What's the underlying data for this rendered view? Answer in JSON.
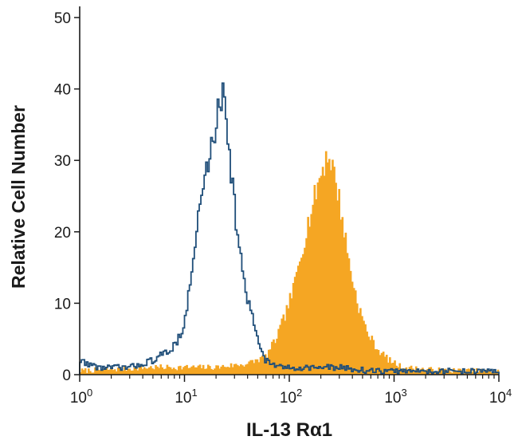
{
  "chart_data": {
    "type": "histogram",
    "xlabel": "IL-13 Rα1",
    "ylabel": "Relative Cell Number",
    "xscale": "log",
    "xlim": [
      1,
      10000
    ],
    "ylim": [
      0,
      50
    ],
    "y_ticks": [
      0,
      10,
      20,
      30,
      40,
      50
    ],
    "x_ticks": [
      {
        "value": 1,
        "base": "10",
        "exp": "0"
      },
      {
        "value": 10,
        "base": "10",
        "exp": "1"
      },
      {
        "value": 100,
        "base": "10",
        "exp": "2"
      },
      {
        "value": 1000,
        "base": "10",
        "exp": "3"
      },
      {
        "value": 10000,
        "base": "10",
        "exp": "4"
      }
    ],
    "grid": false,
    "legend": "none",
    "series": [
      {
        "style": "outline",
        "color": "#1f4e79",
        "points": [
          [
            1.0,
            2
          ],
          [
            1.5,
            1
          ],
          [
            2.0,
            1
          ],
          [
            3.0,
            1
          ],
          [
            5.0,
            2
          ],
          [
            6.5,
            3
          ],
          [
            8.0,
            4
          ],
          [
            10.0,
            7
          ],
          [
            12.0,
            15
          ],
          [
            13.5,
            22
          ],
          [
            15.0,
            26
          ],
          [
            17.0,
            30
          ],
          [
            19.0,
            33
          ],
          [
            21.0,
            37
          ],
          [
            23.0,
            40
          ],
          [
            24.0,
            41
          ],
          [
            25.0,
            37
          ],
          [
            28.0,
            28
          ],
          [
            32.0,
            20
          ],
          [
            37.0,
            13
          ],
          [
            42.0,
            9
          ],
          [
            47.0,
            7
          ],
          [
            52.0,
            4
          ],
          [
            60.0,
            2
          ],
          [
            80.0,
            1
          ],
          [
            150.0,
            1
          ],
          [
            300.0,
            1
          ],
          [
            600.0,
            0.5
          ],
          [
            1500.0,
            0.5
          ],
          [
            4000.0,
            0.5
          ],
          [
            10000.0,
            0.5
          ]
        ]
      },
      {
        "style": "filled",
        "color": "#f5a623",
        "points": [
          [
            1.0,
            0.5
          ],
          [
            5.0,
            1
          ],
          [
            20.0,
            1
          ],
          [
            40.0,
            1.5
          ],
          [
            60.0,
            2.5
          ],
          [
            75.0,
            5
          ],
          [
            90.0,
            8
          ],
          [
            110.0,
            12
          ],
          [
            130.0,
            17
          ],
          [
            150.0,
            21
          ],
          [
            170.0,
            24
          ],
          [
            190.0,
            27
          ],
          [
            210.0,
            29
          ],
          [
            230.0,
            31
          ],
          [
            250.0,
            30
          ],
          [
            280.0,
            27
          ],
          [
            320.0,
            22
          ],
          [
            380.0,
            15
          ],
          [
            450.0,
            10
          ],
          [
            550.0,
            6
          ],
          [
            700.0,
            3.5
          ],
          [
            900.0,
            2
          ],
          [
            1200.0,
            1
          ],
          [
            2000.0,
            0.7
          ],
          [
            5000.0,
            0.5
          ],
          [
            10000.0,
            0.5
          ]
        ]
      }
    ]
  }
}
